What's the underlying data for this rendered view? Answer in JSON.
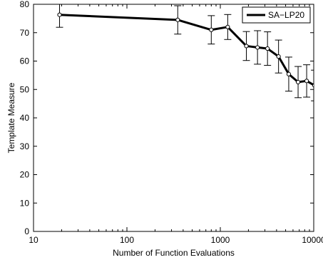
{
  "chart_data": {
    "type": "line",
    "title": "",
    "xlabel": "Number of Function Evaluations",
    "ylabel": "Template Measure",
    "xscale": "log",
    "xlim": [
      10,
      10000
    ],
    "ylim": [
      0,
      80
    ],
    "x_ticks": [
      10,
      100,
      1000,
      10000
    ],
    "x_tick_labels": [
      "10",
      "100",
      "1000",
      "10000"
    ],
    "y_ticks": [
      0,
      10,
      20,
      30,
      40,
      50,
      60,
      70,
      80
    ],
    "y_tick_labels": [
      "0",
      "10",
      "20",
      "30",
      "40",
      "50",
      "60",
      "70",
      "80"
    ],
    "grid": false,
    "legend_position": "top-right",
    "series": [
      {
        "name": "SA−LP20",
        "color": "#000000",
        "marker": "open-circle",
        "x": [
          19,
          350,
          800,
          1200,
          1900,
          2500,
          3200,
          4200,
          5400,
          6800,
          8400,
          10200
        ],
        "y": [
          76.3,
          74.5,
          71.0,
          72.0,
          65.3,
          64.8,
          64.4,
          61.6,
          55.4,
          52.6,
          53.0,
          51.4
        ],
        "error": [
          4.4,
          5.0,
          5.0,
          4.4,
          5.1,
          5.9,
          5.9,
          5.8,
          6.0,
          5.5,
          5.7,
          5.4
        ]
      }
    ]
  }
}
